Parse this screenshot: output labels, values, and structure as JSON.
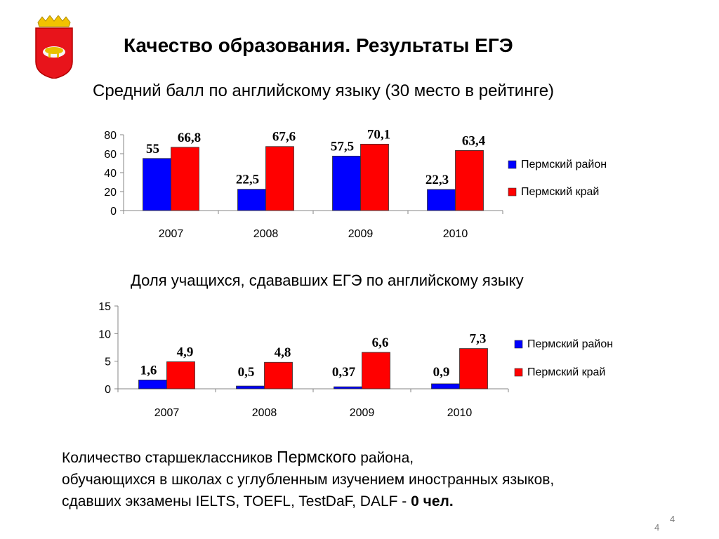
{
  "slide": {
    "title": "Качество образования.  Результаты ЕГЭ",
    "chart1_heading": "Средний балл по английскому языку (30 место в рейтинге)",
    "chart2_heading": "Доля учащихся, сдававших ЕГЭ по английскому языку",
    "footer": {
      "line1_a": "Количество старшеклассников ",
      "line1_b": "Пермского",
      "line1_c": " района,",
      "line2": "обучающихся в школах с углубленным изучением иностранных языков,",
      "line3_a": "сдавших экзамены IELTS, TOEFL, TestDaF, DALF   - ",
      "line3_b": "0 чел."
    },
    "page_number": "4",
    "page_number_2": "4"
  },
  "chart_data": [
    {
      "type": "bar",
      "categories": [
        "2007",
        "2008",
        "2009",
        "2010"
      ],
      "series": [
        {
          "name": "Пермский район",
          "color": "#0000ff",
          "values": [
            55,
            22.5,
            57.5,
            22.3
          ],
          "labels": [
            "55",
            "22,5",
            "57,5",
            "22,3"
          ]
        },
        {
          "name": "Пермский край",
          "color": "#ff0000",
          "values": [
            66.8,
            67.6,
            70.1,
            63.4
          ],
          "labels": [
            "66,8",
            "67,6",
            "70,1",
            "63,4"
          ]
        }
      ],
      "yticks": [
        "0",
        "20",
        "40",
        "60",
        "80"
      ],
      "ylim": [
        0,
        80
      ],
      "legend": "right",
      "grid": false
    },
    {
      "type": "bar",
      "categories": [
        "2007",
        "2008",
        "2009",
        "2010"
      ],
      "series": [
        {
          "name": "Пермский район",
          "color": "#0000ff",
          "values": [
            1.6,
            0.5,
            0.37,
            0.9
          ],
          "labels": [
            "1,6",
            "0,5",
            "0,37",
            "0,9"
          ]
        },
        {
          "name": "Пермский край",
          "color": "#ff0000",
          "values": [
            4.9,
            4.8,
            6.6,
            7.3
          ],
          "labels": [
            "4,9",
            "4,8",
            "6,6",
            "7,3"
          ]
        }
      ],
      "yticks": [
        "0",
        "5",
        "10",
        "15"
      ],
      "ylim": [
        0,
        15
      ],
      "legend": "right",
      "grid": false
    }
  ]
}
